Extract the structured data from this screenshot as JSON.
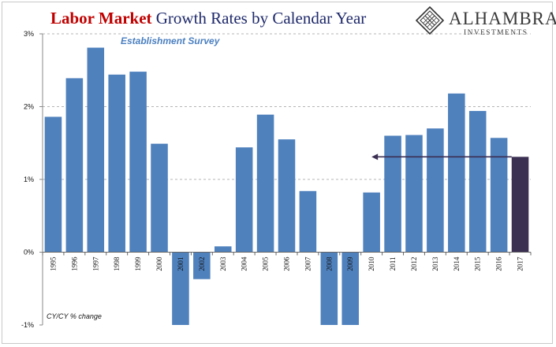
{
  "title": {
    "part1": "Labor Market",
    "part2": "Growth Rates by Calendar Year"
  },
  "brand": {
    "name": "ALHAMBRA",
    "subtitle": "INVESTMENTS"
  },
  "annotation": "Establishment Survey",
  "note": "CY/CY % change",
  "colors": {
    "bar": "#4f81bd",
    "highlight": "#3b2f52",
    "arrow": "#3b2f52",
    "title_red": "#c00000",
    "title_navy": "#1f2a6b"
  },
  "chart_data": {
    "type": "bar",
    "categories": [
      "1995",
      "1996",
      "1997",
      "1998",
      "1999",
      "2000",
      "2001",
      "2002",
      "2003",
      "2004",
      "2005",
      "2006",
      "2007",
      "2008",
      "2009",
      "2010",
      "2011",
      "2012",
      "2013",
      "2014",
      "2015",
      "2016",
      "2017"
    ],
    "values": [
      1.86,
      2.39,
      2.81,
      2.44,
      2.48,
      1.49,
      -1.0,
      -0.37,
      0.08,
      1.44,
      1.89,
      1.55,
      0.84,
      -1.0,
      -1.0,
      0.82,
      1.6,
      1.61,
      1.7,
      2.18,
      1.94,
      1.57,
      1.31
    ],
    "highlight_category": "2017",
    "y_ticks": [
      "3%",
      "2%",
      "1%",
      "0%",
      "-1%"
    ],
    "ylim": [
      -1,
      3
    ],
    "grid": true,
    "annotation_arrow": {
      "from": "2017",
      "to": "2010",
      "value": 1.31
    }
  }
}
